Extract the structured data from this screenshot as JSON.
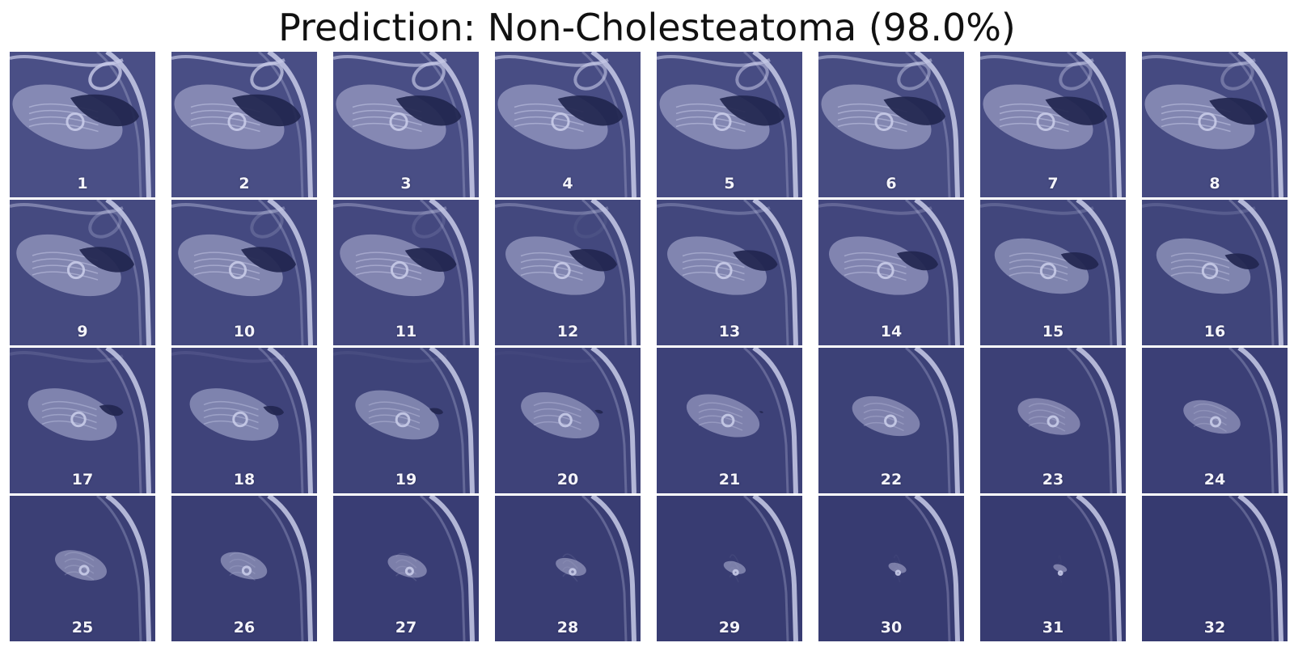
{
  "figure": {
    "title": "Prediction: Non-Cholesteatoma (98.0%)"
  },
  "slices": [
    {
      "label": "1",
      "bone": 0.95,
      "air": 1.0
    },
    {
      "label": "2",
      "bone": 0.95,
      "air": 1.0
    },
    {
      "label": "3",
      "bone": 0.95,
      "air": 0.95
    },
    {
      "label": "4",
      "bone": 0.95,
      "air": 0.95
    },
    {
      "label": "5",
      "bone": 0.95,
      "air": 0.95
    },
    {
      "label": "6",
      "bone": 0.95,
      "air": 0.9
    },
    {
      "label": "7",
      "bone": 0.95,
      "air": 0.9
    },
    {
      "label": "8",
      "bone": 0.95,
      "air": 0.85
    },
    {
      "label": "9",
      "bone": 0.9,
      "air": 0.8
    },
    {
      "label": "10",
      "bone": 0.9,
      "air": 0.8
    },
    {
      "label": "11",
      "bone": 0.9,
      "air": 0.75
    },
    {
      "label": "12",
      "bone": 0.85,
      "air": 0.7
    },
    {
      "label": "13",
      "bone": 0.85,
      "air": 0.65
    },
    {
      "label": "14",
      "bone": 0.85,
      "air": 0.6
    },
    {
      "label": "15",
      "bone": 0.8,
      "air": 0.55
    },
    {
      "label": "16",
      "bone": 0.8,
      "air": 0.5
    },
    {
      "label": "17",
      "bone": 0.75,
      "air": 0.35
    },
    {
      "label": "18",
      "bone": 0.75,
      "air": 0.3
    },
    {
      "label": "19",
      "bone": 0.7,
      "air": 0.2
    },
    {
      "label": "20",
      "bone": 0.65,
      "air": 0.12
    },
    {
      "label": "21",
      "bone": 0.6,
      "air": 0.06
    },
    {
      "label": "22",
      "bone": 0.55,
      "air": 0.0
    },
    {
      "label": "23",
      "bone": 0.5,
      "air": 0.0
    },
    {
      "label": "24",
      "bone": 0.45,
      "air": 0.0
    },
    {
      "label": "25",
      "bone": 0.4,
      "air": 0.0
    },
    {
      "label": "26",
      "bone": 0.35,
      "air": 0.0
    },
    {
      "label": "27",
      "bone": 0.28,
      "air": 0.0
    },
    {
      "label": "28",
      "bone": 0.2,
      "air": 0.0
    },
    {
      "label": "29",
      "bone": 0.12,
      "air": 0.0
    },
    {
      "label": "30",
      "bone": 0.08,
      "air": 0.0
    },
    {
      "label": "31",
      "bone": 0.04,
      "air": 0.0
    },
    {
      "label": "32",
      "bone": 0.0,
      "air": 0.0
    }
  ],
  "colors": {
    "background": "#4a4f86",
    "dark_background": "#363a70",
    "bone": "#c8cbe8",
    "air": "#22264f",
    "label": "#f4f4fa"
  }
}
